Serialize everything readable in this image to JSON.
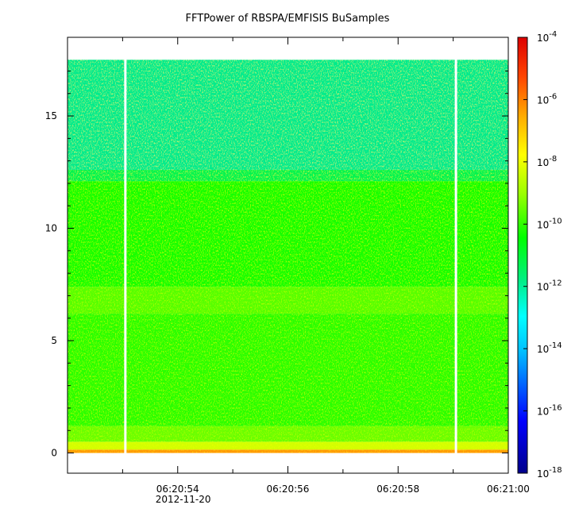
{
  "chart_data": {
    "type": "heatmap",
    "title": "FFTPower of RBSPA/EMFISIS  BuSamples",
    "xlabel": "",
    "ylabel": "",
    "x_date_label": "2012-11-20",
    "x_ticks": [
      "06:20:54",
      "06:20:56",
      "06:20:58",
      "06:21:00"
    ],
    "x_tick_seconds": [
      54,
      56,
      58,
      60
    ],
    "x_range_seconds": [
      52.0,
      60.0
    ],
    "y_ticks": [
      0,
      5,
      10,
      15
    ],
    "ylim": [
      -0.9,
      18.5
    ],
    "data_y_range": [
      0,
      17.5
    ],
    "gap_times_seconds": [
      53.05,
      59.05
    ],
    "colorbar": {
      "scale": "log",
      "range": [
        1e-18,
        0.0001
      ],
      "tick_exponents": [
        -4,
        -6,
        -8,
        -10,
        -12,
        -14,
        -16,
        -18
      ],
      "tick_base": "10"
    },
    "bands": [
      {
        "y_from": 0.0,
        "y_to": 0.15,
        "log_power": -6.3
      },
      {
        "y_from": 0.15,
        "y_to": 0.5,
        "log_power": -8.3
      },
      {
        "y_from": 0.5,
        "y_to": 1.2,
        "log_power": -9.4
      },
      {
        "y_from": 1.2,
        "y_to": 6.2,
        "log_power": -10.0
      },
      {
        "y_from": 6.2,
        "y_to": 7.4,
        "log_power": -9.6
      },
      {
        "y_from": 7.4,
        "y_to": 12.1,
        "log_power": -10.2
      },
      {
        "y_from": 12.1,
        "y_to": 12.6,
        "log_power": -11.2
      },
      {
        "y_from": 12.6,
        "y_to": 17.5,
        "log_power": -11.8
      }
    ],
    "grid": false,
    "legend": "colorbar-right"
  }
}
